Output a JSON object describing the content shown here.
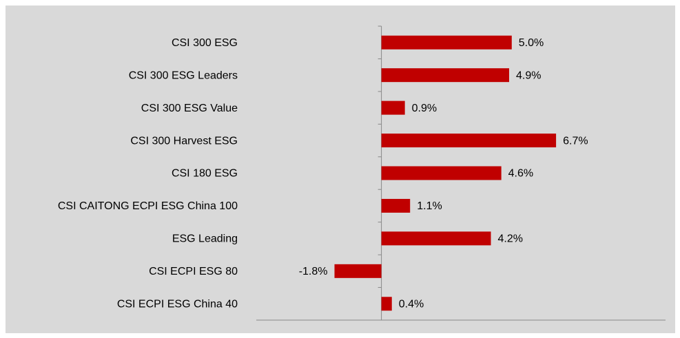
{
  "chart_data": {
    "type": "barh",
    "categories": [
      "CSI 300 ESG",
      "CSI 300 ESG Leaders",
      "CSI 300 ESG Value",
      "CSI 300 Harvest ESG",
      "CSI 180 ESG",
      "CSI CAITONG ECPI ESG China 100",
      "ESG Leading",
      "CSI ECPI ESG 80",
      "CSI ECPI ESG China 40"
    ],
    "values": [
      5.0,
      4.9,
      0.9,
      6.7,
      4.6,
      1.1,
      4.2,
      -1.8,
      0.4
    ],
    "value_labels": [
      "5.0%",
      "4.9%",
      "0.9%",
      "6.7%",
      "4.6%",
      "1.1%",
      "4.2%",
      "-1.8%",
      "0.4%"
    ],
    "color": "#c00000",
    "xlim": [
      -4.8,
      10.9
    ]
  }
}
